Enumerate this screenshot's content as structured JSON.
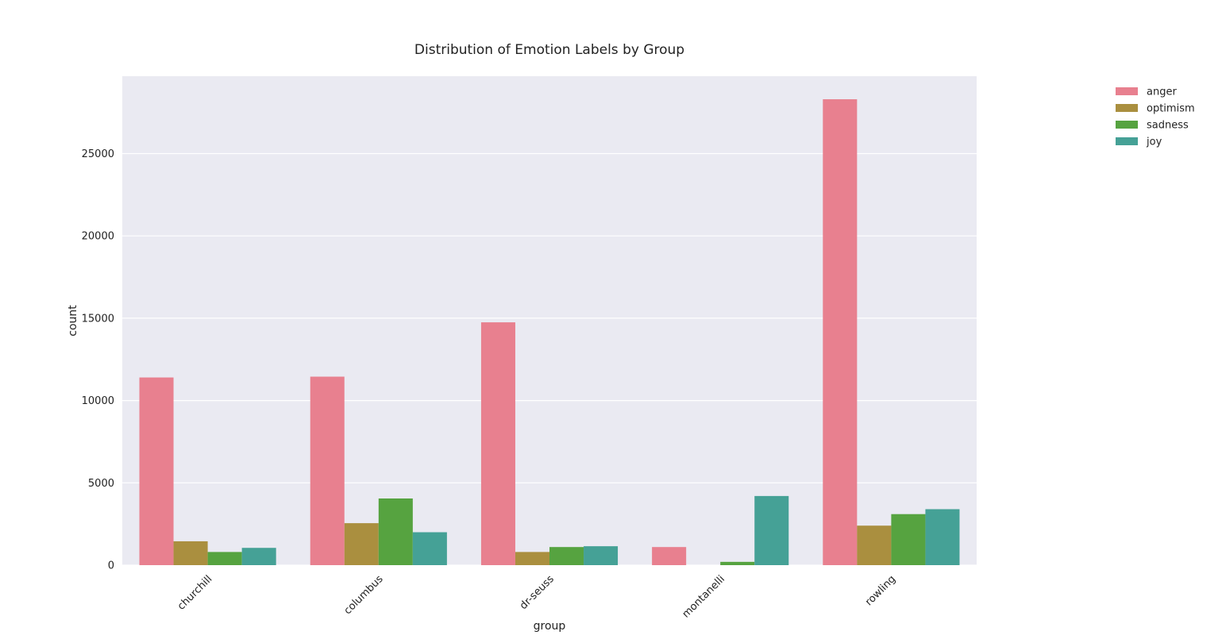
{
  "chart_data": {
    "type": "bar",
    "title": "Distribution of Emotion Labels by Group",
    "xlabel": "group",
    "ylabel": "count",
    "categories": [
      "churchill",
      "columbus",
      "dr-seuss",
      "montanelli",
      "rowling"
    ],
    "series": [
      {
        "name": "anger",
        "color": "#e8808f",
        "values": [
          11400,
          11450,
          14750,
          1100,
          28300
        ]
      },
      {
        "name": "optimism",
        "color": "#aa8f3f",
        "values": [
          1450,
          2550,
          800,
          0,
          2400
        ]
      },
      {
        "name": "sadness",
        "color": "#56a340",
        "values": [
          800,
          4050,
          1100,
          200,
          3100
        ]
      },
      {
        "name": "joy",
        "color": "#45a196",
        "values": [
          1050,
          2000,
          1150,
          4200,
          3400
        ]
      }
    ],
    "ylim": [
      0,
      29700
    ],
    "yticks": [
      0,
      5000,
      10000,
      15000,
      20000,
      25000
    ],
    "grid": true,
    "legend_position": "outside-top-right",
    "background": "#eaeaf2"
  }
}
